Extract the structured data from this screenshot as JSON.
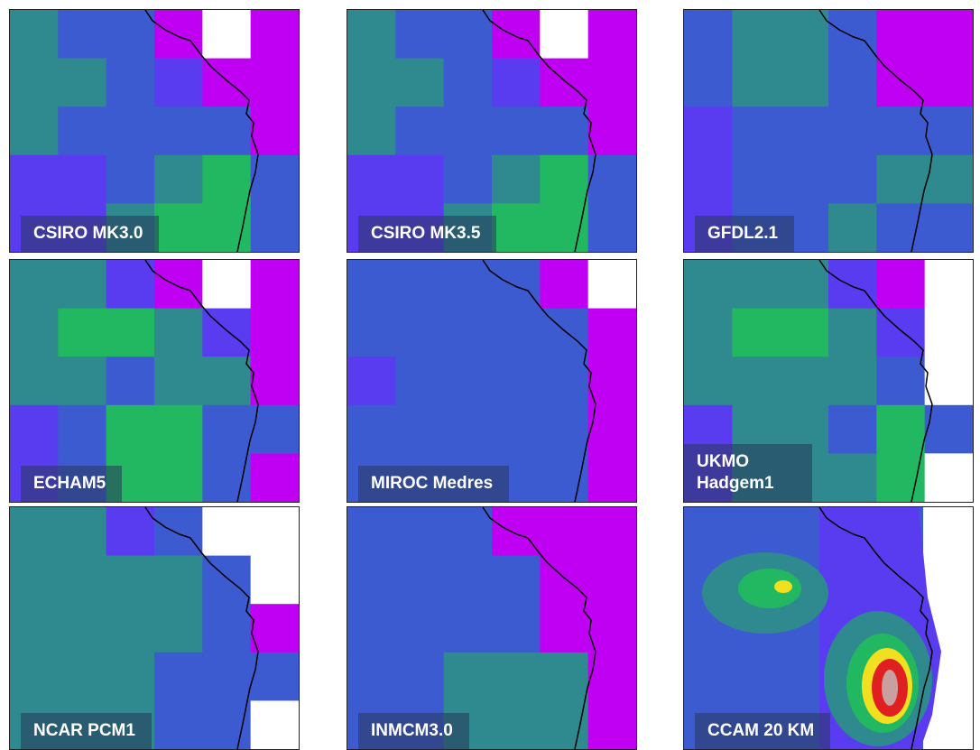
{
  "panels": [
    {
      "label": "CSIRO MK3.0"
    },
    {
      "label": "CSIRO MK3.5"
    },
    {
      "label": "GFDL2.1"
    },
    {
      "label": "ECHAM5"
    },
    {
      "label": "MIROC Medres"
    },
    {
      "label": "UKMO Hadgem1"
    },
    {
      "label": "NCAR PCM1"
    },
    {
      "label": "INMCM3.0"
    },
    {
      "label": "CCAM 20 KM"
    }
  ]
}
